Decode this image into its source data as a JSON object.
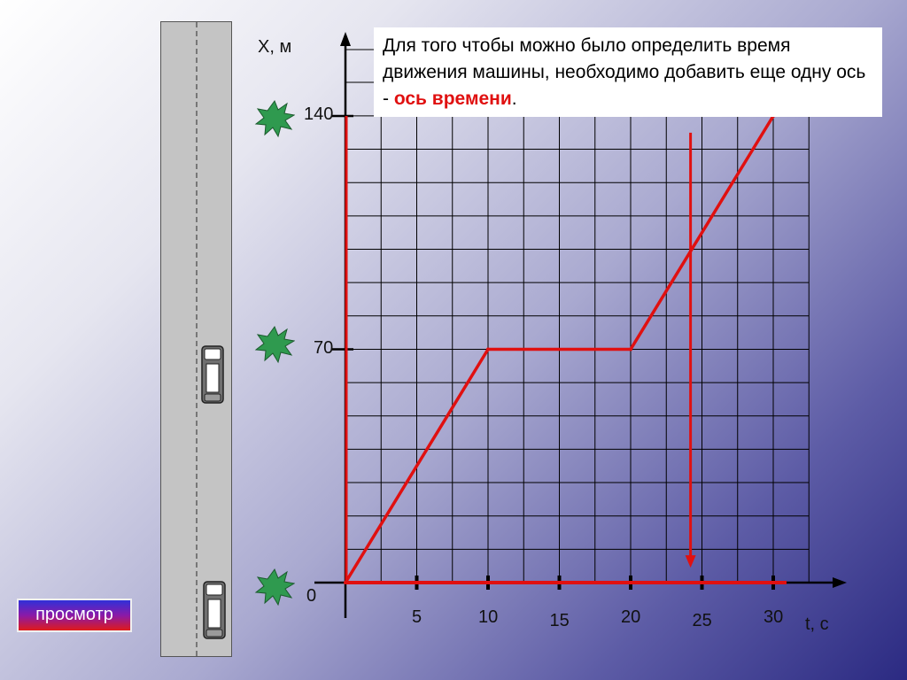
{
  "slide": {
    "info_text_part1": "Для того чтобы можно было определить время движения машины, необходимо добавить еще одну ось - ",
    "info_text_accent": "ось времени",
    "info_text_end": ".",
    "preview_button": "просмотр"
  },
  "colors": {
    "series": "#e01010",
    "grid": "#000000",
    "bush": "#2f9a4f"
  },
  "icons": {
    "car": "car-icon",
    "bush": "bush-icon",
    "road": "road-icon"
  },
  "chart_data": {
    "type": "line",
    "title": "",
    "xlabel": "t, с",
    "ylabel": "X, м",
    "xlim": [
      0,
      32.5
    ],
    "ylim": [
      0,
      147
    ],
    "x_ticks": [
      {
        "value": 5,
        "label": "5"
      },
      {
        "value": 10,
        "label": "10"
      },
      {
        "value": 15,
        "label": "15"
      },
      {
        "value": 20,
        "label": "20"
      },
      {
        "value": 25,
        "label": "25"
      },
      {
        "value": 30,
        "label": "30"
      }
    ],
    "y_ticks": [
      {
        "value": 0,
        "label": "0"
      },
      {
        "value": 70,
        "label": "70"
      },
      {
        "value": 140,
        "label": "140"
      }
    ],
    "grid": true,
    "series": [
      {
        "name": "",
        "x": [
          0,
          10,
          20,
          30
        ],
        "y": [
          0,
          70,
          70,
          140
        ]
      }
    ],
    "annotations": [
      {
        "type": "arrow",
        "x": 24.2,
        "y_from": 135,
        "y_to": 5
      }
    ]
  }
}
